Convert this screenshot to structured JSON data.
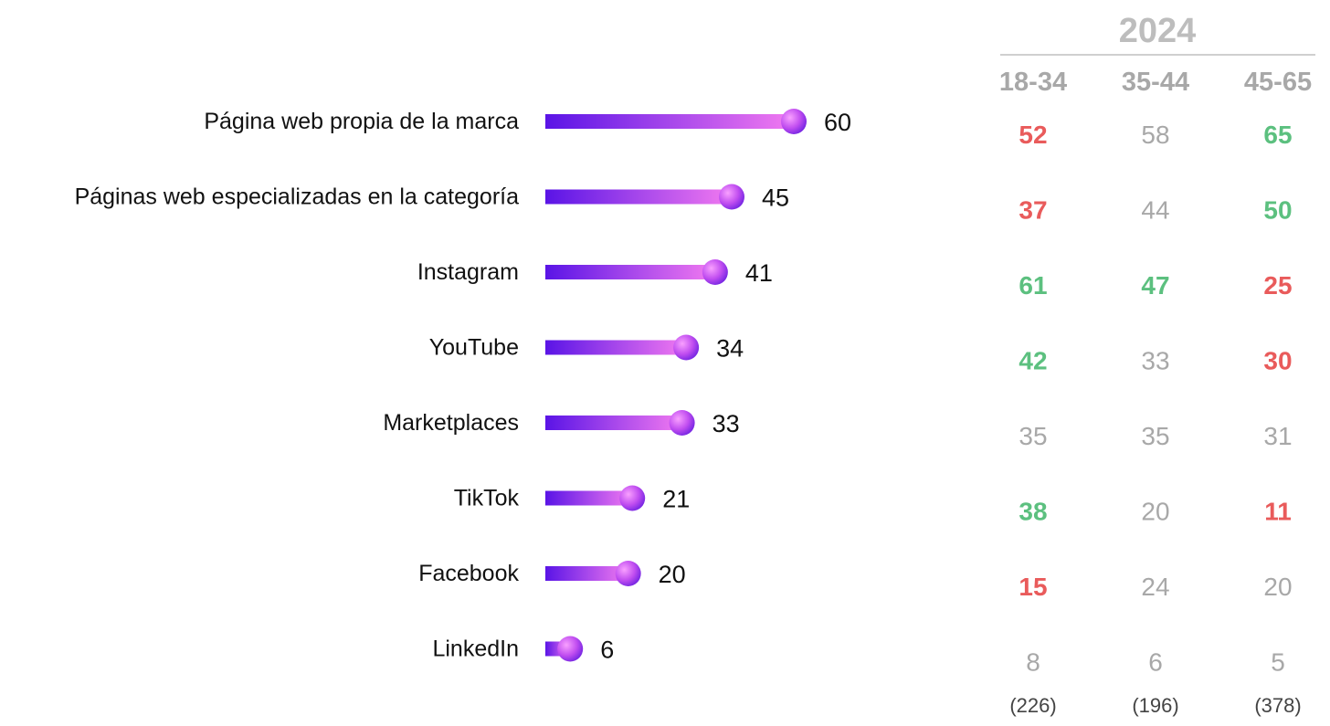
{
  "chart_data": {
    "type": "bar",
    "categories": [
      "Página web propia de la marca",
      "Páginas web especializadas en la categoría",
      "Instagram",
      "YouTube",
      "Marketplaces",
      "TikTok",
      "Facebook",
      "LinkedIn"
    ],
    "values": [
      60,
      45,
      41,
      34,
      33,
      21,
      20,
      6
    ],
    "xlim": [
      0,
      60
    ],
    "title": "",
    "xlabel": "",
    "ylabel": "",
    "colors": {
      "bar_start": "#5a14e6",
      "bar_end": "#f27af0",
      "dot_start": "#f9a0ff",
      "dot_end": "#6a1fe0"
    }
  },
  "age_table": {
    "year": "2024",
    "columns": [
      "18-34",
      "35-44",
      "45-65"
    ],
    "rows": [
      [
        {
          "v": "52",
          "s": "down"
        },
        {
          "v": "58",
          "s": "neutral"
        },
        {
          "v": "65",
          "s": "up"
        }
      ],
      [
        {
          "v": "37",
          "s": "down"
        },
        {
          "v": "44",
          "s": "neutral"
        },
        {
          "v": "50",
          "s": "up"
        }
      ],
      [
        {
          "v": "61",
          "s": "up"
        },
        {
          "v": "47",
          "s": "up"
        },
        {
          "v": "25",
          "s": "down"
        }
      ],
      [
        {
          "v": "42",
          "s": "up"
        },
        {
          "v": "33",
          "s": "neutral"
        },
        {
          "v": "30",
          "s": "down"
        }
      ],
      [
        {
          "v": "35",
          "s": "neutral"
        },
        {
          "v": "35",
          "s": "neutral"
        },
        {
          "v": "31",
          "s": "neutral"
        }
      ],
      [
        {
          "v": "38",
          "s": "up"
        },
        {
          "v": "20",
          "s": "neutral"
        },
        {
          "v": "11",
          "s": "down"
        }
      ],
      [
        {
          "v": "15",
          "s": "down"
        },
        {
          "v": "24",
          "s": "neutral"
        },
        {
          "v": "20",
          "s": "neutral"
        }
      ],
      [
        {
          "v": "8",
          "s": "neutral"
        },
        {
          "v": "6",
          "s": "neutral"
        },
        {
          "v": "5",
          "s": "neutral"
        }
      ]
    ],
    "bases": [
      "(226)",
      "(196)",
      "(378)"
    ],
    "colors": {
      "up": "#5cc07f",
      "down": "#e95b5b",
      "neutral": "#a8a8a8"
    }
  }
}
